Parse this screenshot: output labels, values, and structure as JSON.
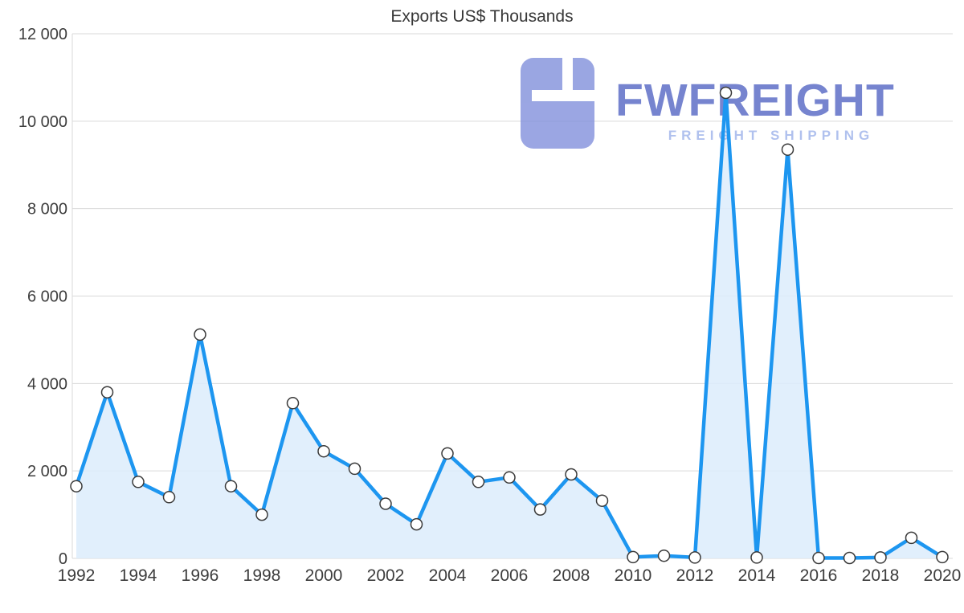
{
  "title": "Exports US$ Thousands",
  "watermark": {
    "brand": "FWFREIGHT",
    "tagline": "FREIGHT SHIPPING"
  },
  "chart_data": {
    "type": "area",
    "title": "Exports US$ Thousands",
    "x": [
      1992,
      1993,
      1994,
      1995,
      1996,
      1997,
      1998,
      1999,
      2000,
      2001,
      2002,
      2003,
      2004,
      2005,
      2006,
      2007,
      2008,
      2009,
      2010,
      2011,
      2012,
      2013,
      2014,
      2015,
      2016,
      2017,
      2018,
      2019,
      2020
    ],
    "series": [
      {
        "name": "Exports US$ Thousands",
        "values": [
          1650,
          3800,
          1750,
          1400,
          5120,
          1650,
          1000,
          3550,
          2450,
          2050,
          1250,
          780,
          2400,
          1750,
          1850,
          1120,
          1920,
          1320,
          30,
          60,
          20,
          10650,
          20,
          9350,
          10,
          10,
          20,
          470,
          30
        ]
      }
    ],
    "xlabel": "",
    "ylabel": "",
    "ylim": [
      0,
      12000
    ],
    "yticks": [
      0,
      2000,
      4000,
      6000,
      8000,
      10000,
      12000
    ],
    "ytick_labels": [
      "0",
      "2 000",
      "4 000",
      "6 000",
      "8 000",
      "10 000",
      "12 000"
    ],
    "xtick_labels": [
      "1992",
      "1994",
      "1996",
      "1998",
      "2000",
      "2002",
      "2004",
      "2006",
      "2008",
      "2010",
      "2012",
      "2014",
      "2016",
      "2018",
      "2020"
    ],
    "grid": true,
    "legend": "none",
    "colors": {
      "line": "#1d96f0",
      "area": "#dcecfb",
      "marker_fill": "#ffffff",
      "marker_stroke": "#3a3a3a",
      "grid": "#d9d9d9",
      "tick_label": "#3d3d3d",
      "title": "#383838",
      "watermark_logo": "#8290dc",
      "watermark_brand": "#5466c4",
      "watermark_tagline": "#9db2ea"
    }
  }
}
